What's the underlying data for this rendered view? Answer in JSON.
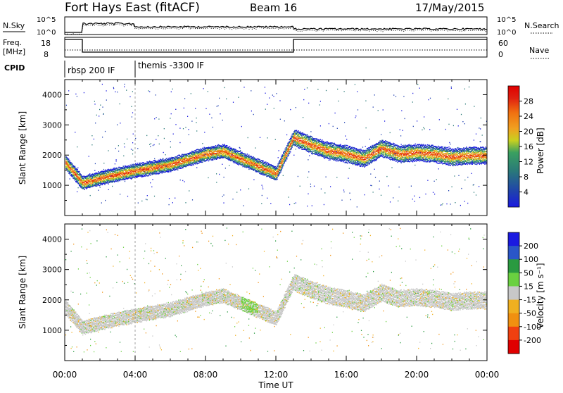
{
  "header": {
    "site": "Fort Hays East (fitACF)",
    "beam": "Beam 16",
    "date": "17/May/2015"
  },
  "nsky_panel": {
    "left_label": "N.Sky",
    "left_ticks": [
      "10^5",
      "10^0"
    ],
    "right_ticks": [
      "10^5",
      "10^0"
    ],
    "right_label": "N.Search"
  },
  "freq_panel": {
    "left_label_1": "Freq.",
    "left_label_2": "[MHz]",
    "left_ticks": [
      "18",
      "8"
    ],
    "right_ticks": [
      "60",
      "0"
    ],
    "right_label": "Nave"
  },
  "cpid": {
    "label": "CPID",
    "segments": [
      {
        "name": "rbsp 200 IF",
        "start_hour": 0
      },
      {
        "name": "themis -3300 IF",
        "start_hour": 4
      }
    ]
  },
  "time_axis": {
    "label": "Time UT",
    "tick_labels": [
      "00:00",
      "04:00",
      "08:00",
      "12:00",
      "16:00",
      "20:00",
      "00:00"
    ],
    "tick_hours": [
      0,
      4,
      8,
      12,
      16,
      20,
      24
    ]
  },
  "power_colorbar": {
    "label": "Power [dB]",
    "ticks": [
      "4",
      "8",
      "12",
      "16",
      "20",
      "24",
      "28"
    ],
    "colors": [
      "#1a1ae0",
      "#1f3fb0",
      "#2a7a78",
      "#3aa060",
      "#c8d020",
      "#f0a020",
      "#f07010",
      "#e02010",
      "#e00000"
    ]
  },
  "velocity_colorbar": {
    "label": "Velocity [m s⁻¹]",
    "ticks": [
      "200",
      "100",
      "50",
      "15",
      "-15",
      "-50",
      "-100",
      "-200"
    ],
    "colors": [
      "#1a1ae0",
      "#2a56c8",
      "#2a9a40",
      "#6ad040",
      "#c8c8c8",
      "#f0b020",
      "#f09010",
      "#f04010",
      "#e00000"
    ]
  },
  "chart_data": [
    {
      "type": "heatmap",
      "panel": "power",
      "ylabel": "Slant Range [km]",
      "xlabel": "",
      "xlim": [
        0,
        24
      ],
      "ylim": [
        0,
        4500
      ],
      "yticks": [
        1000,
        2000,
        3000,
        4000
      ],
      "grid": false,
      "echo_bands": [
        {
          "name": "main",
          "hours": [
            0,
            1,
            2,
            4,
            6,
            8,
            9,
            10,
            11,
            12,
            13,
            14,
            15,
            16,
            17,
            18,
            19,
            20,
            21,
            22,
            23,
            24
          ],
          "ranges_km": [
            1800,
            1100,
            1250,
            1500,
            1700,
            2050,
            2150,
            1900,
            1650,
            1400,
            2600,
            2350,
            2150,
            2050,
            1900,
            2250,
            2050,
            2100,
            2050,
            1950,
            2000,
            2000
          ]
        }
      ],
      "reference_line_hour": 4
    },
    {
      "type": "heatmap",
      "panel": "velocity",
      "ylabel": "Slant Range [km]",
      "xlabel": "Time UT",
      "xlim": [
        0,
        24
      ],
      "ylim": [
        0,
        4500
      ],
      "yticks": [
        1000,
        2000,
        3000,
        4000
      ],
      "grid": false
    }
  ]
}
